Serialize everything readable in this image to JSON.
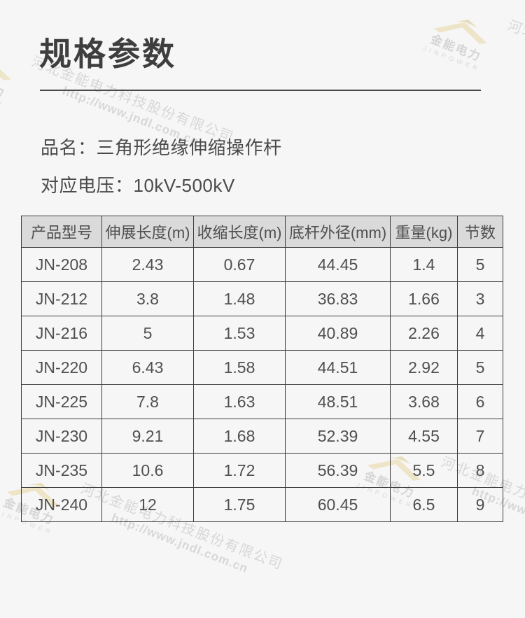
{
  "page": {
    "title": "规格参数",
    "product_name_label": "品名：",
    "product_name": "三角形绝缘伸缩操作杆",
    "voltage_label": "对应电压：",
    "voltage": "10kV-500kV"
  },
  "table": {
    "headers": [
      "产品型号",
      "伸展长度(m)",
      "收缩长度(m)",
      "底杆外径(mm)",
      "重量(kg)",
      "节数"
    ],
    "rows": [
      [
        "JN-208",
        "2.43",
        "0.67",
        "44.45",
        "1.4",
        "5"
      ],
      [
        "JN-212",
        "3.8",
        "1.48",
        "36.83",
        "1.66",
        "3"
      ],
      [
        "JN-216",
        "5",
        "1.53",
        "40.89",
        "2.26",
        "4"
      ],
      [
        "JN-220",
        "6.43",
        "1.58",
        "44.51",
        "2.92",
        "5"
      ],
      [
        "JN-225",
        "7.8",
        "1.63",
        "48.51",
        "3.68",
        "6"
      ],
      [
        "JN-230",
        "9.21",
        "1.68",
        "52.39",
        "4.55",
        "7"
      ],
      [
        "JN-235",
        "10.6",
        "1.72",
        "56.39",
        "5.5",
        "8"
      ],
      [
        "JN-240",
        "12",
        "1.75",
        "60.45",
        "6.5",
        "9"
      ]
    ]
  },
  "watermark": {
    "logo_text": "金能电力",
    "logo_subtext": "JINPOWER",
    "company": "河北金能电力科技股份有限公司",
    "url": "http://www.jndl.com.cn"
  },
  "colors": {
    "background": "#f6f6f6",
    "title_text": "#3e3e3e",
    "body_text": "#4f4f4f",
    "table_border": "#3d3d3d",
    "header_bg": "#dadada",
    "watermark_text": "#d7d7d7",
    "watermark_gold": "#eee5c8"
  }
}
